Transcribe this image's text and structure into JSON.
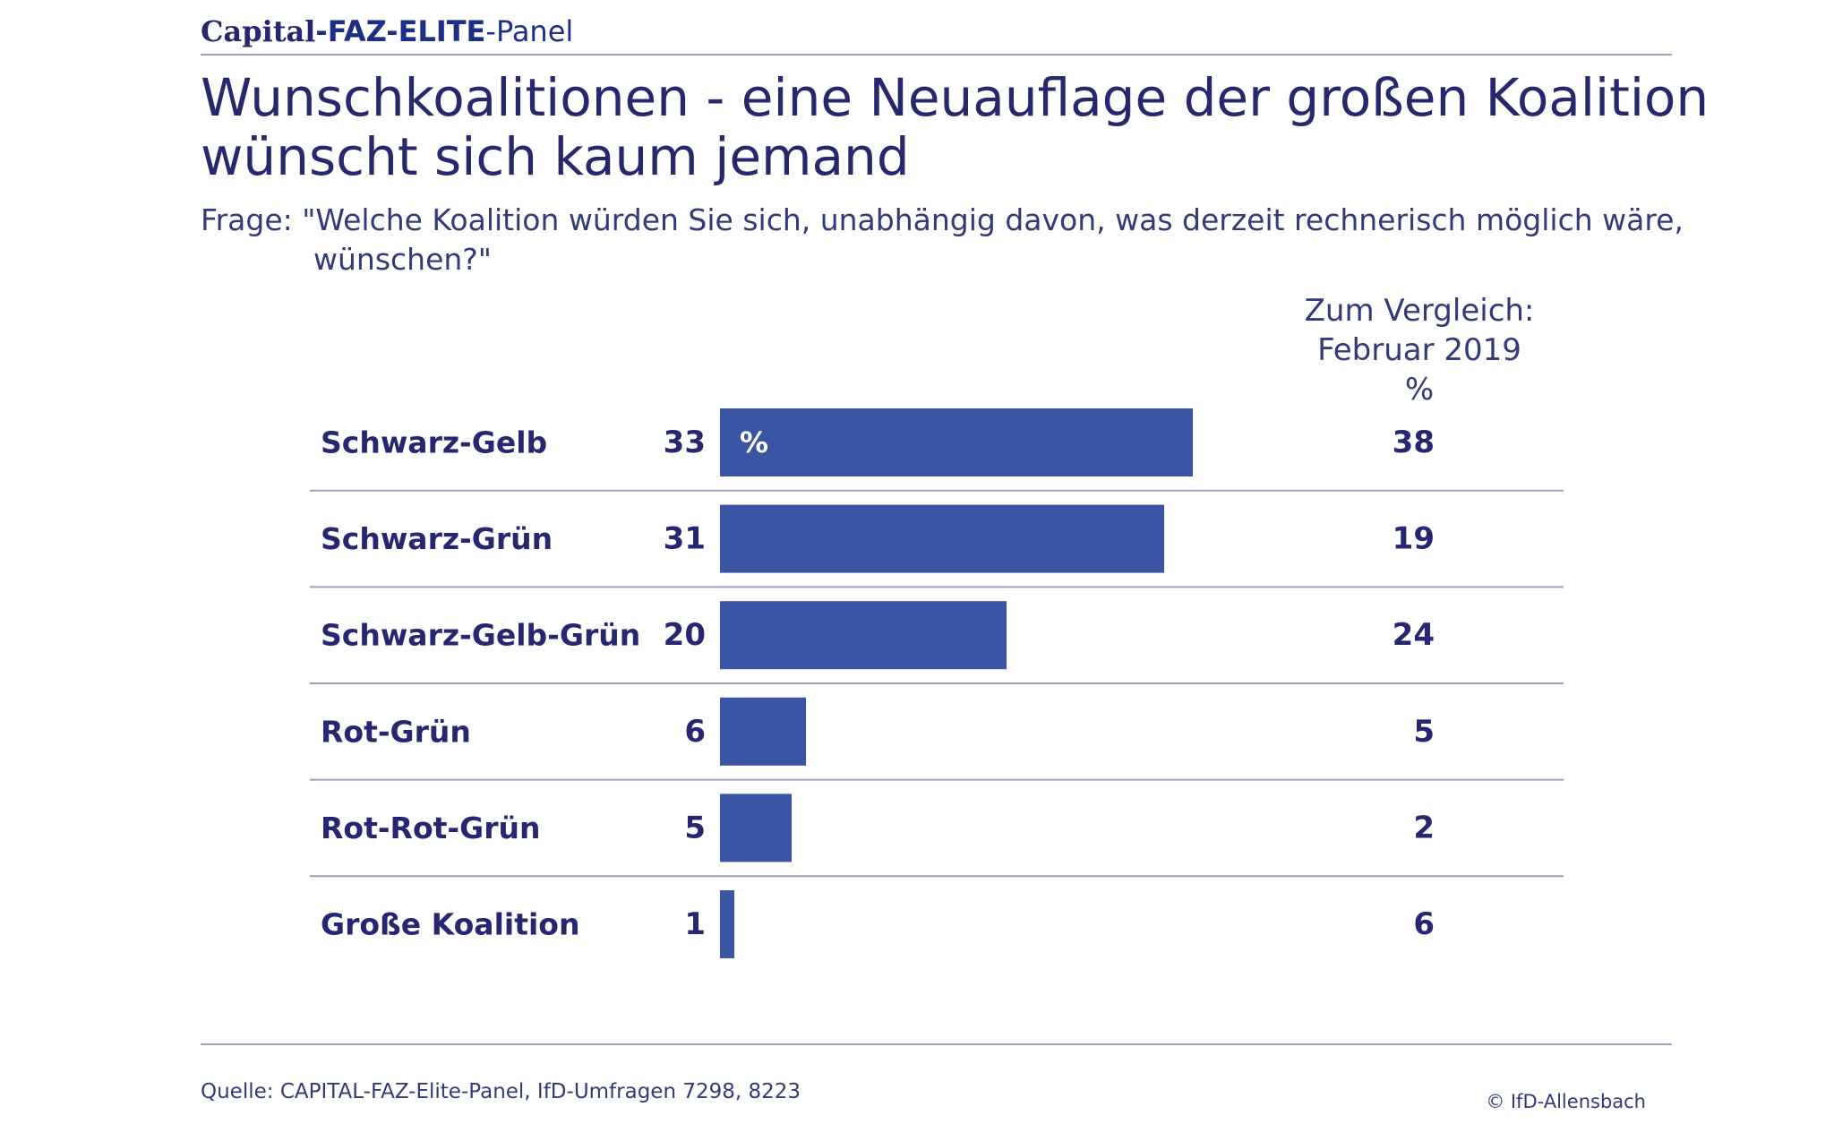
{
  "header": {
    "brand_capital": "Capital",
    "brand_faz_elite": "-FAZ-ELITE",
    "brand_panel": "-Panel",
    "title": "Wunschkoalitionen - eine Neuauflage der großen Koalition wünscht sich kaum jemand",
    "question": "Frage: \"Welche Koalition würden Sie sich, unabhängig davon, was derzeit rechnerisch möglich wäre, wünschen?\""
  },
  "comparison_header": {
    "line1": "Zum Vergleich:",
    "line2": "Februar 2019",
    "line3": "%"
  },
  "footer": {
    "source": "Quelle: CAPITAL-FAZ-Elite-Panel, IfD-Umfragen 7298, 8223",
    "copyright": "© IfD-Allensbach"
  },
  "colors": {
    "bar": "#3a55a3",
    "text": "#262673",
    "rule": "#9ea0bd"
  },
  "chart_data": {
    "type": "bar",
    "orientation": "horizontal",
    "unit_label": "%",
    "categories": [
      "Schwarz-Gelb",
      "Schwarz-Grün",
      "Schwarz-Gelb-Grün",
      "Rot-Grün",
      "Rot-Rot-Grün",
      "Große Koalition"
    ],
    "series": [
      {
        "values": [
          33,
          31,
          20,
          6,
          5,
          1
        ]
      },
      {
        "name": "Februar 2019",
        "values": [
          38,
          19,
          24,
          5,
          2,
          6
        ]
      }
    ],
    "xlim": [
      0,
      100
    ],
    "grid": false,
    "legend": "none"
  }
}
